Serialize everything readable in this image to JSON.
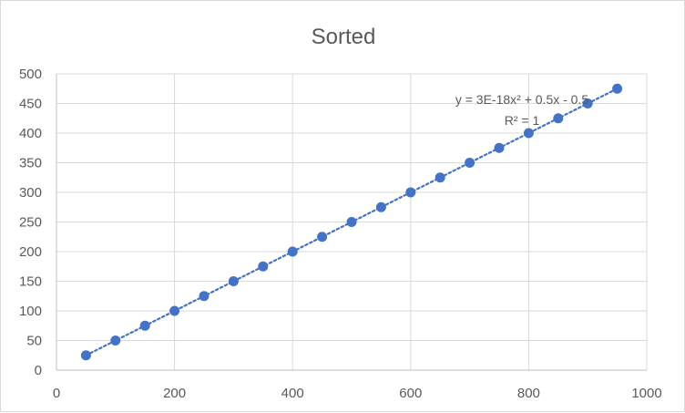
{
  "chart_data": {
    "type": "scatter",
    "title": "Sorted",
    "xlabel": "",
    "ylabel": "",
    "xlim": [
      0,
      1000
    ],
    "ylim": [
      0,
      500
    ],
    "x_ticks": [
      "0",
      "200",
      "400",
      "600",
      "800",
      "1000"
    ],
    "y_ticks": [
      "0",
      "50",
      "100",
      "150",
      "200",
      "250",
      "300",
      "350",
      "400",
      "450",
      "500"
    ],
    "grid": true,
    "legend": "none",
    "marker_color": "#4472C4",
    "trendline": {
      "type": "polynomial",
      "style": "dotted",
      "color": "#4472C4",
      "equation": "y = 3E-18x² + 0.5x - 0.5",
      "r_squared": "R² = 1"
    },
    "series": [
      {
        "x": [
          50,
          100,
          150,
          200,
          250,
          300,
          350,
          400,
          450,
          500,
          550,
          600,
          650,
          700,
          750,
          800,
          850,
          900,
          950
        ],
        "y": [
          25,
          50,
          75,
          100,
          125,
          150,
          175,
          200,
          225,
          250,
          275,
          300,
          325,
          350,
          375,
          400,
          425,
          450,
          475
        ]
      }
    ]
  }
}
